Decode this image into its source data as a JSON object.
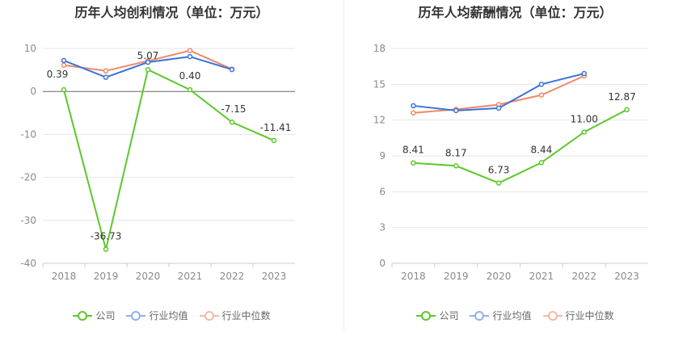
{
  "colors": {
    "company": "#5cc82a",
    "industry_avg": "#3a73d9",
    "industry_median": "#f08866"
  },
  "legend": [
    {
      "label": "公司",
      "color": "#5cc82a"
    },
    {
      "label": "行业均值",
      "color": "#8fb2e6"
    },
    {
      "label": "行业中位数",
      "color": "#f5b9a3"
    }
  ],
  "chart_data": [
    {
      "type": "line",
      "title": "历年人均创利情况（单位：万元）",
      "categories": [
        "2018",
        "2019",
        "2020",
        "2021",
        "2022",
        "2023"
      ],
      "ylim": [
        -40,
        10
      ],
      "yticks": [
        10,
        0,
        -10,
        -20,
        -30,
        -40
      ],
      "grid": true,
      "series": [
        {
          "name": "公司",
          "color": "#5cc82a",
          "values": [
            0.39,
            -36.73,
            5.07,
            0.4,
            -7.15,
            -11.41
          ],
          "labels": [
            "0.39",
            "-36.73",
            "5.07",
            "0.40",
            "-7.15",
            "-11.41"
          ]
        },
        {
          "name": "行业均值",
          "color": "#3a73d9",
          "values": [
            7.2,
            3.3,
            6.8,
            8.1,
            5.1,
            null
          ]
        },
        {
          "name": "行业中位数",
          "color": "#f08866",
          "values": [
            6.1,
            4.8,
            7.1,
            9.5,
            5.2,
            null
          ]
        }
      ]
    },
    {
      "type": "line",
      "title": "历年人均薪酬情况（单位：万元）",
      "categories": [
        "2018",
        "2019",
        "2020",
        "2021",
        "2022",
        "2023"
      ],
      "ylim": [
        0,
        18
      ],
      "yticks": [
        18,
        15,
        12,
        9,
        6,
        3,
        0
      ],
      "grid": true,
      "series": [
        {
          "name": "公司",
          "color": "#5cc82a",
          "values": [
            8.41,
            8.17,
            6.73,
            8.44,
            11.0,
            12.87
          ],
          "labels": [
            "8.41",
            "8.17",
            "6.73",
            "8.44",
            "11.00",
            "12.87"
          ]
        },
        {
          "name": "行业均值",
          "color": "#3a73d9",
          "values": [
            13.2,
            12.8,
            13.0,
            15.0,
            15.9,
            null
          ]
        },
        {
          "name": "行业中位数",
          "color": "#f08866",
          "values": [
            12.6,
            12.9,
            13.3,
            14.1,
            15.7,
            null
          ]
        }
      ]
    }
  ]
}
